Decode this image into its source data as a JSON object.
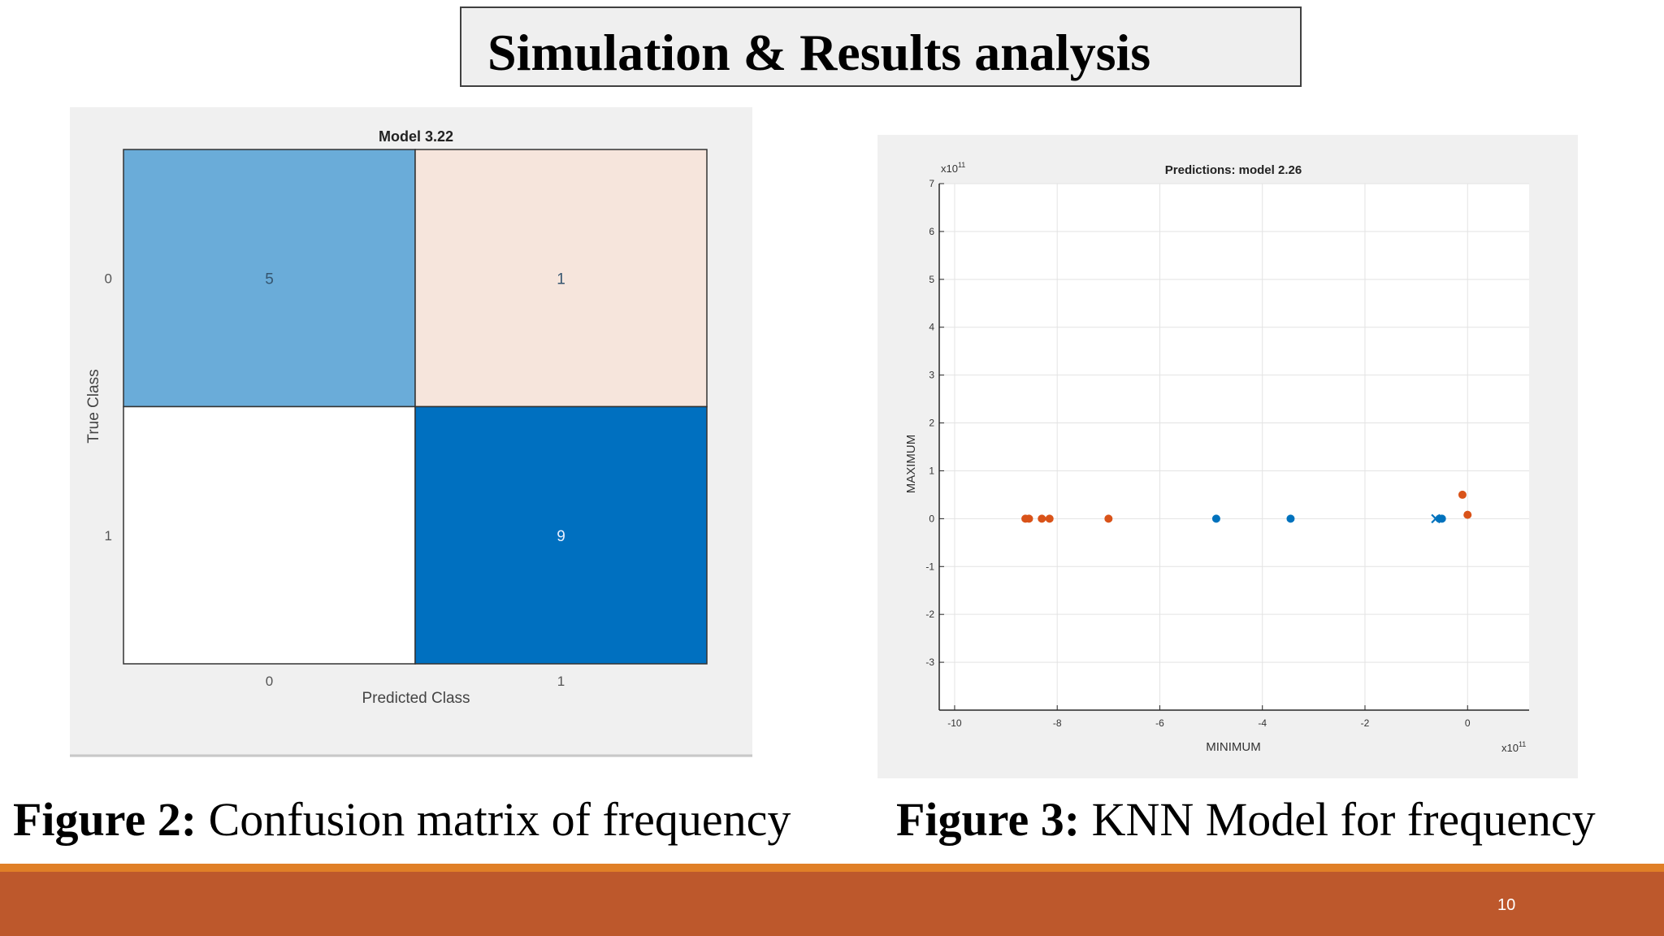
{
  "slide": {
    "title": "Simulation & Results analysis",
    "page_number": "10",
    "colors": {
      "accent_line": "#e07f27",
      "footer_bar": "#bd582c"
    }
  },
  "figure2": {
    "caption_label": "Figure 2:",
    "caption_text": " Confusion matrix of frequency"
  },
  "figure3": {
    "caption_label": "Figure 3:",
    "caption_text": " KNN Model for frequency"
  },
  "chart_data": [
    {
      "type": "heatmap",
      "title": "Model 3.22",
      "xlabel": "Predicted Class",
      "ylabel": "True Class",
      "x_categories": [
        "0",
        "1"
      ],
      "y_categories": [
        "0",
        "1"
      ],
      "cells": [
        {
          "row": 0,
          "col": 0,
          "value": "5",
          "color": "#6aacd9"
        },
        {
          "row": 0,
          "col": 1,
          "value": "1",
          "color": "#f6e5dc"
        },
        {
          "row": 1,
          "col": 0,
          "value": "",
          "color": "#ffffff"
        },
        {
          "row": 1,
          "col": 1,
          "value": "9",
          "color": "#0070c0"
        }
      ]
    },
    {
      "type": "scatter",
      "title": "Predictions: model 2.26",
      "xlabel": "MINIMUM",
      "ylabel": "MAXIMUM",
      "x_exponent_label": "x10",
      "x_exponent": "11",
      "y_exponent_label": "x10",
      "y_exponent": "11",
      "xlim": [
        -10.3,
        1.2
      ],
      "ylim": [
        -4,
        7
      ],
      "xticks": [
        -10,
        -8,
        -6,
        -4,
        -2,
        0
      ],
      "yticks": [
        -3,
        -2,
        -1,
        0,
        1,
        2,
        3,
        4,
        5,
        6,
        7
      ],
      "grid": true,
      "series": [
        {
          "color": "#d95319",
          "marker": "dot",
          "points": [
            [
              -8.62,
              0
            ],
            [
              -8.55,
              0
            ],
            [
              -8.3,
              0
            ],
            [
              -8.15,
              0
            ],
            [
              -7.0,
              0
            ],
            [
              -0.1,
              0.5
            ],
            [
              0.0,
              0.08
            ]
          ]
        },
        {
          "color": "#0072bd",
          "marker": "dot",
          "points": [
            [
              -4.9,
              0
            ],
            [
              -3.45,
              0
            ],
            [
              -0.55,
              0
            ],
            [
              -0.5,
              0
            ]
          ]
        },
        {
          "color": "#0072bd",
          "marker": "x",
          "points": [
            [
              -0.62,
              0
            ]
          ]
        }
      ]
    }
  ]
}
